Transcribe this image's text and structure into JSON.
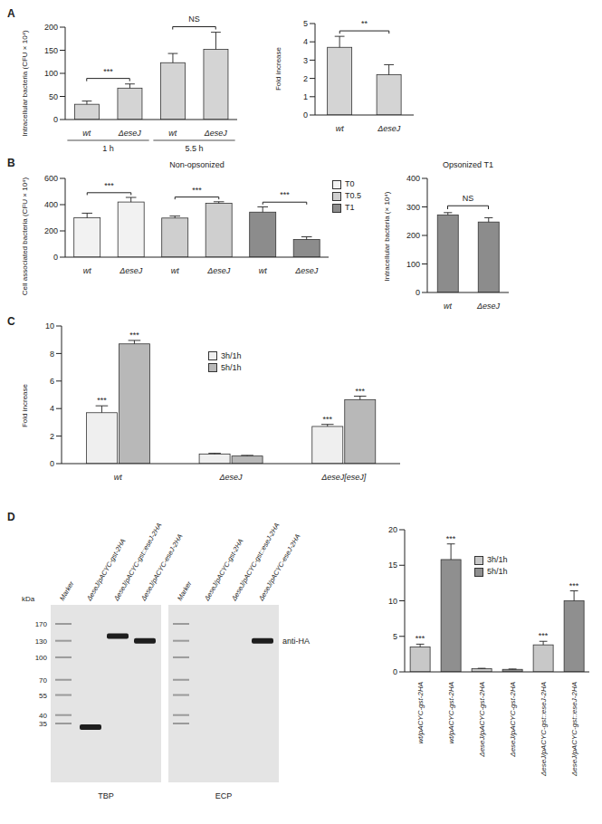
{
  "panel_labels": [
    "A",
    "B",
    "C",
    "D"
  ],
  "chart_data": [
    {
      "type": "bar",
      "categories": [
        "wt",
        "ΔeseJ",
        "wt",
        "ΔeseJ"
      ],
      "groups": [
        {
          "label": "1 h",
          "from": 0,
          "to": 1
        },
        {
          "label": "5.5 h",
          "from": 2,
          "to": 3
        }
      ],
      "values": [
        33,
        68,
        123,
        152
      ],
      "errors": [
        7,
        9,
        20,
        37
      ],
      "color": "#d4d4d4",
      "y_label": "Intracellular bacteria (CFU × 10⁴)",
      "ylim": [
        0,
        200
      ],
      "yticks": [
        0,
        50,
        100,
        150,
        200
      ],
      "annotations": [
        {
          "text": "***",
          "from": 0,
          "to": 1
        },
        {
          "text": "NS",
          "from": 2,
          "to": 3
        }
      ]
    },
    {
      "type": "bar",
      "categories": [
        "wt",
        "ΔeseJ"
      ],
      "values": [
        3.7,
        2.2
      ],
      "errors": [
        0.6,
        0.55
      ],
      "color": "#d4d4d4",
      "y_label": "Fold increase",
      "ylim": [
        0,
        5
      ],
      "yticks": [
        0,
        1,
        2,
        3,
        4,
        5
      ],
      "annotations": [
        {
          "text": "**",
          "from": 0,
          "to": 1
        }
      ]
    },
    {
      "type": "bar",
      "title": "Non-opsonized",
      "categories": [
        "wt",
        "ΔeseJ",
        "wt",
        "ΔeseJ",
        "wt",
        "ΔeseJ"
      ],
      "series": [
        {
          "name": "T0",
          "color": "#f2f2f2",
          "values": [
            300,
            420,
            null,
            null,
            null,
            null
          ],
          "errors": [
            35,
            35,
            null,
            null,
            null,
            null
          ]
        },
        {
          "name": "T0.5",
          "color": "#cfcfcf",
          "values": [
            null,
            null,
            298,
            410,
            null,
            null
          ],
          "errors": [
            null,
            null,
            15,
            12,
            null,
            null
          ]
        },
        {
          "name": "T1",
          "color": "#8c8c8c",
          "values": [
            null,
            null,
            null,
            null,
            343,
            135
          ],
          "errors": [
            null,
            null,
            null,
            null,
            40,
            20
          ]
        }
      ],
      "legend": "right",
      "y_label": "Cell associated bacteria (CFU × 10⁴)",
      "ylim": [
        0,
        600
      ],
      "yticks": [
        0,
        200,
        400,
        600
      ],
      "annotations": [
        {
          "text": "***",
          "from": 0,
          "to": 1
        },
        {
          "text": "***",
          "from": 2,
          "to": 3
        },
        {
          "text": "***",
          "from": 4,
          "to": 5
        }
      ]
    },
    {
      "type": "bar",
      "title": "Opsonized T1",
      "categories": [
        "wt",
        "ΔeseJ"
      ],
      "values": [
        272,
        247
      ],
      "errors": [
        8,
        15
      ],
      "color": "#8c8c8c",
      "y_label": "Intracellular bacteria (× 10⁴)",
      "ylim": [
        0,
        400
      ],
      "yticks": [
        0,
        100,
        200,
        300,
        400
      ],
      "annotations": [
        {
          "text": "NS",
          "from": 0,
          "to": 1
        }
      ]
    },
    {
      "type": "bar",
      "categories": [
        "wt",
        "ΔeseJ",
        "ΔeseJ[eseJ]"
      ],
      "series": [
        {
          "name": "3h/1h",
          "color": "#efefef",
          "values": [
            3.7,
            0.7,
            2.7
          ],
          "errors": [
            0.5,
            0.05,
            0.15
          ],
          "significance": [
            "***",
            null,
            "***"
          ]
        },
        {
          "name": "5h/1h",
          "color": "#b8b8b8",
          "values": [
            8.7,
            0.55,
            4.65
          ],
          "errors": [
            0.25,
            0.05,
            0.25
          ],
          "significance": [
            "***",
            null,
            "***"
          ]
        }
      ],
      "legend": "center",
      "y_label": "Fold increase",
      "ylim": [
        0,
        10
      ],
      "yticks": [
        0,
        2,
        4,
        6,
        8,
        10
      ]
    },
    {
      "type": "bar",
      "categories": [
        "wt/pACYC-gst-2HA",
        "wt/pACYC-gst-2HA",
        "ΔeseJ/pACYC-gst-2HA",
        "ΔeseJ/pACYC-gst-2HA",
        "ΔeseJ/pACYC-gst::eseJ-2HA",
        "ΔeseJ/pACYC-gst::eseJ-2HA"
      ],
      "series": [
        {
          "name": "3h/1h",
          "color": "#c8c8c8",
          "values": [
            3.5,
            null,
            0.45,
            null,
            3.8,
            null
          ],
          "errors": [
            0.4,
            null,
            0.05,
            null,
            0.5,
            null
          ],
          "significance": [
            "***",
            null,
            null,
            null,
            "***",
            null
          ]
        },
        {
          "name": "5h/1h",
          "color": "#8f8f8f",
          "values": [
            null,
            15.8,
            null,
            0.35,
            null,
            10
          ],
          "errors": [
            null,
            2.2,
            null,
            0.05,
            null,
            1.4
          ],
          "significance": [
            null,
            "***",
            null,
            null,
            null,
            "***"
          ]
        }
      ],
      "legend": "center",
      "ylim": [
        0,
        20
      ],
      "yticks": [
        0,
        5,
        10,
        15,
        20
      ]
    }
  ],
  "blot": {
    "unit": "kDa",
    "marker_kda": [
      170,
      130,
      100,
      70,
      55,
      40,
      35
    ],
    "antibody": "anti-HA",
    "fractions": [
      {
        "name": "TBP",
        "lanes": [
          "Marker",
          "ΔeseJ/pACYC-gst-2HA",
          "ΔeseJ/pACYC-gst::eseJ-2HA",
          "ΔeseJ/pACYC-eseJ-2HA"
        ]
      },
      {
        "name": "ECP",
        "lanes": [
          "Marker",
          "ΔeseJ/pACYC-gst-2HA",
          "ΔeseJ/pACYC-gst::eseJ-2HA",
          "ΔeseJ/pACYC-eseJ-2HA"
        ]
      }
    ],
    "bands": [
      {
        "fraction": 0,
        "lane": 1,
        "kda": 33
      },
      {
        "fraction": 0,
        "lane": 2,
        "kda": 140
      },
      {
        "fraction": 0,
        "lane": 3,
        "kda": 130
      },
      {
        "fraction": 1,
        "lane": 3,
        "kda": 130
      }
    ]
  }
}
